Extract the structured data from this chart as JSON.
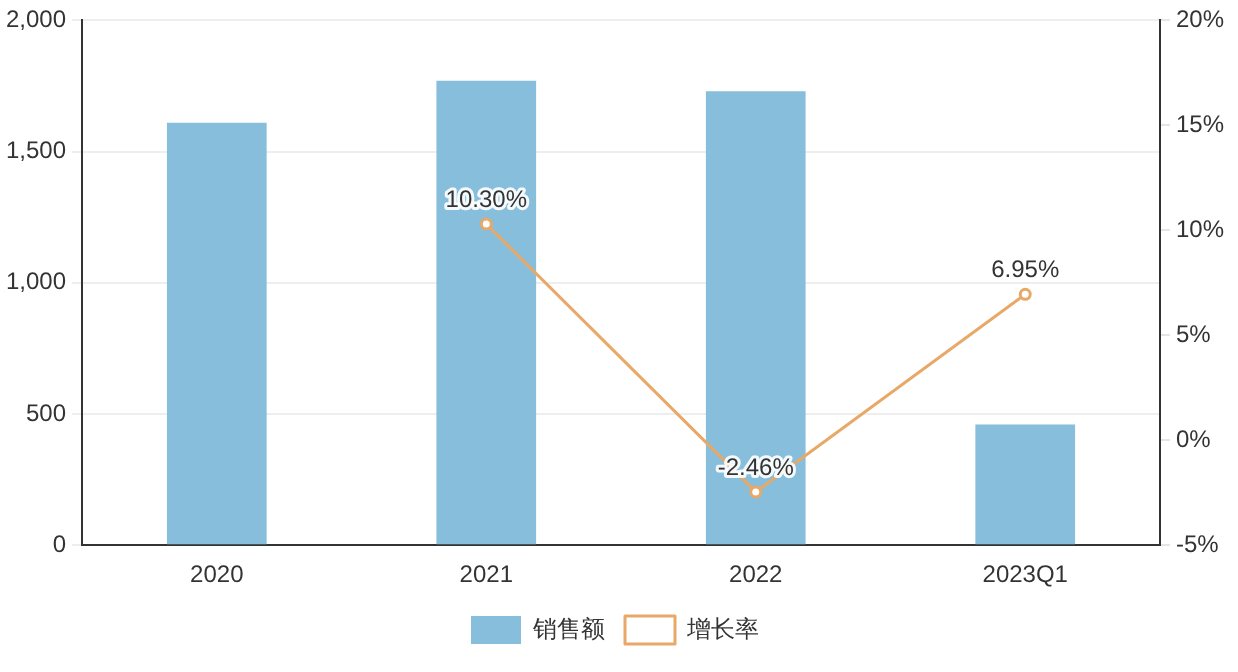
{
  "chart_data": {
    "type": "bar",
    "categories": [
      "2020",
      "2021",
      "2022",
      "2023Q1"
    ],
    "series": [
      {
        "name": "销售额",
        "color": "#86bedb",
        "values": [
          1610,
          1770,
          1730,
          460
        ]
      },
      {
        "name": "增长率",
        "type": "line",
        "axis": "y2",
        "color": "#e8a868",
        "values": [
          null,
          10.3,
          -2.46,
          6.95
        ],
        "value_labels": [
          null,
          "10.30%",
          "-2.46%",
          "6.95%"
        ]
      }
    ],
    "ylim": [
      0,
      2000
    ],
    "yticks": [
      0,
      500,
      {
        "value": 1000,
        "label": "1,000"
      },
      {
        "value": 1500,
        "label": "1,500"
      },
      {
        "value": 2000,
        "label": "2,000"
      }
    ],
    "y2lim": [
      -5,
      20
    ],
    "y2ticks": [
      {
        "value": -5,
        "label": "-5%"
      },
      {
        "value": 0,
        "label": "0%"
      },
      {
        "value": 5,
        "label": "5%"
      },
      {
        "value": 10,
        "label": "10%"
      },
      {
        "value": 15,
        "label": "15%"
      },
      {
        "value": 20,
        "label": "20%"
      }
    ],
    "grid": "y",
    "legend": "bottom",
    "marker": "circle",
    "line_style": "solid"
  }
}
